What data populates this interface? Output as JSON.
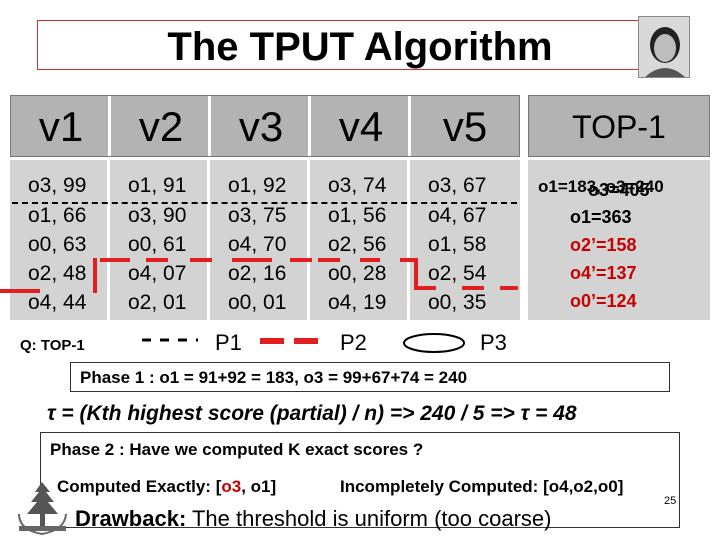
{
  "title": "The TPUT Algorithm",
  "table": {
    "headers": [
      "v1",
      "v2",
      "v3",
      "v4",
      "v5"
    ],
    "top1_header": "TOP-1",
    "rows": [
      [
        "o3, 99",
        "o1, 91",
        "o1, 92",
        "o3, 74",
        "o3, 67"
      ],
      [
        "o1, 66",
        "o3, 90",
        "o3, 75",
        "o1, 56",
        "o4, 67"
      ],
      [
        "o0, 63",
        "o0, 61",
        "o4, 70",
        "o2, 56",
        "o1, 58"
      ],
      [
        "o2, 48",
        "o4, 07",
        "o2, 16",
        "o0, 28",
        "o2, 54"
      ],
      [
        "o4, 44",
        "o2, 01",
        "o0, 01",
        "o4, 19",
        "o0, 35"
      ]
    ],
    "top1_overlap_a": "o1=183, o3=240",
    "top1_overlap_b": "o3=405",
    "top1_lines": [
      "o1=363",
      "o2’=158",
      "o4’=137",
      "o0’=124"
    ]
  },
  "legend": {
    "query": "Q: TOP-1",
    "p1": "P1",
    "p2": "P2",
    "p3": "P3"
  },
  "phase1": "Phase 1 : o1 = 91+92 = 183, o3 = 99+67+74 = 240",
  "tau": "τ = (Kth highest score (partial) / n) => 240 / 5 => τ =  48",
  "phase2": "Phase 2 : Have we computed K exact scores ?",
  "computed_exact": {
    "label": "Computed Exactly: [",
    "first": "o3",
    "rest": ", o1]"
  },
  "incomplete": "Incompletely Computed: [o4,o2,o0]",
  "drawback": {
    "label": "Drawback:",
    "text": " The threshold is uniform (too coarse)"
  },
  "page_number": "25",
  "colors": {
    "accent_red": "#c80000",
    "table_bg": "#d3d3d3",
    "header_bg": "#b3b3b3"
  }
}
